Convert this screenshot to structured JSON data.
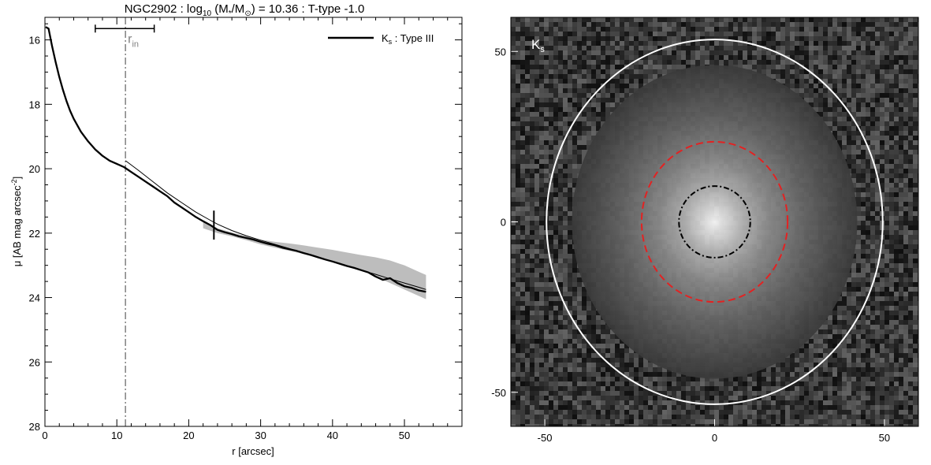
{
  "chart_data": [
    {
      "type": "line",
      "title": {
        "galaxy": "NGC2902",
        "mass_label_prefix": "log",
        "mass_label_sub": "10",
        "mass_label_core": " (M",
        "mass_label_sub2": "*",
        "mass_label_mid": "/M",
        "mass_label_sub3": "⊙",
        "mass_label_end": ")",
        "mass_value": "= 10.36",
        "ttype": "T-type -1.0",
        "separator": ":"
      },
      "xlabel": "r [arcsec]",
      "ylabel_main": "μ [AB mag arcsec",
      "ylabel_sup": "-2",
      "ylabel_end": "]",
      "xlim": [
        0,
        58
      ],
      "ylim": [
        28,
        15.3
      ],
      "y_inverted": true,
      "xticks": [
        "0",
        "10",
        "20",
        "30",
        "40",
        "50"
      ],
      "yticks": [
        "16",
        "18",
        "20",
        "22",
        "24",
        "26",
        "28"
      ],
      "legend": {
        "position": "top-right",
        "band": "K",
        "band_sub": "s",
        "text": " : Type III"
      },
      "annotation": {
        "r_in_label": "r",
        "r_in_sub": "in",
        "r_in_value": 11.2,
        "r_in_range": [
          7,
          15.2
        ],
        "r_in_bar_y": 15.65,
        "break_radius": 23.5,
        "break_mu": 21.75,
        "break_half_height": 0.45
      },
      "series": [
        {
          "style": "observed-profile",
          "color": "#000000",
          "x": [
            0.1,
            0.5,
            1,
            1.5,
            2,
            2.5,
            3,
            3.5,
            4,
            5,
            6,
            7,
            8,
            9,
            10,
            11,
            12,
            13,
            14,
            15,
            16,
            17,
            18,
            19,
            20,
            21,
            22,
            23,
            24,
            25,
            26,
            27,
            28,
            29,
            30,
            31,
            32,
            33,
            34,
            35,
            36,
            37,
            38,
            39,
            40,
            41,
            42,
            43,
            44,
            45,
            46,
            47,
            48,
            49,
            50,
            51,
            52,
            53
          ],
          "y": [
            15.6,
            15.65,
            16.2,
            16.7,
            17.15,
            17.55,
            17.9,
            18.2,
            18.45,
            18.85,
            19.15,
            19.4,
            19.6,
            19.75,
            19.85,
            19.95,
            20.1,
            20.25,
            20.4,
            20.55,
            20.7,
            20.85,
            21.05,
            21.2,
            21.35,
            21.5,
            21.63,
            21.75,
            21.9,
            21.97,
            22.03,
            22.1,
            22.15,
            22.2,
            22.27,
            22.33,
            22.38,
            22.45,
            22.5,
            22.55,
            22.62,
            22.68,
            22.75,
            22.82,
            22.88,
            22.95,
            23.02,
            23.08,
            23.15,
            23.22,
            23.35,
            23.45,
            23.4,
            23.55,
            23.65,
            23.7,
            23.78,
            23.82
          ]
        },
        {
          "style": "model-fit",
          "color": "#000000",
          "x": [
            11.2,
            13,
            15,
            17,
            19,
            21,
            23,
            24,
            26,
            28,
            30,
            32,
            34,
            36,
            38,
            40,
            42,
            44,
            46,
            48,
            50,
            52,
            53
          ],
          "y": [
            19.75,
            20.05,
            20.4,
            20.75,
            21.05,
            21.35,
            21.6,
            21.72,
            21.92,
            22.08,
            22.22,
            22.35,
            22.48,
            22.62,
            22.75,
            22.88,
            23.02,
            23.15,
            23.28,
            23.42,
            23.55,
            23.68,
            23.75
          ]
        }
      ],
      "uncertainty_band": {
        "color": "#bdbdbd",
        "x": [
          22,
          24,
          26,
          28,
          30,
          32,
          34,
          36,
          38,
          40,
          42,
          44,
          46,
          48,
          50,
          52,
          53
        ],
        "lower": [
          21.6,
          21.85,
          21.98,
          22.1,
          22.2,
          22.27,
          22.32,
          22.38,
          22.45,
          22.52,
          22.6,
          22.68,
          22.75,
          22.85,
          23.0,
          23.2,
          23.3
        ],
        "upper": [
          21.85,
          22.0,
          22.1,
          22.22,
          22.35,
          22.45,
          22.55,
          22.65,
          22.75,
          22.88,
          23.0,
          23.15,
          23.35,
          23.55,
          23.75,
          23.95,
          24.05
        ]
      }
    },
    {
      "type": "image",
      "band": "K",
      "band_sub": "s",
      "xlim": [
        -60,
        60
      ],
      "ylim": [
        -60,
        60
      ],
      "xticks": [
        "-50",
        "0",
        "50"
      ],
      "yticks": [
        "50",
        "0",
        "-50"
      ],
      "contours": [
        {
          "style": "dash-dot",
          "color": "#000000",
          "semi_major": 10.5,
          "semi_minor": 10.5
        },
        {
          "style": "dashed",
          "color": "#e32222",
          "semi_major": 21.5,
          "semi_minor": 23.5
        },
        {
          "style": "solid",
          "color": "#ffffff",
          "semi_major": 49.5,
          "semi_minor": 53.5
        }
      ]
    }
  ]
}
